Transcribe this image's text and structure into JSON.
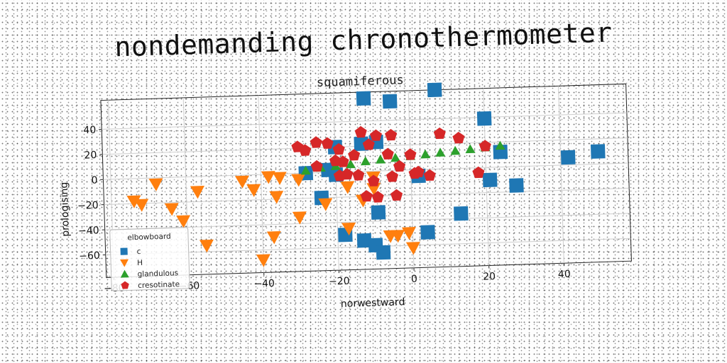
{
  "figure_title": "nondemanding chronothermometer",
  "chart_data": {
    "type": "scatter",
    "title": "squamiferous",
    "xlabel": "norwestward",
    "ylabel": "prologising",
    "xlim": [
      -82,
      58
    ],
    "ylim": [
      -78,
      63
    ],
    "xticks": [
      -80,
      -60,
      -40,
      -20,
      0,
      20,
      40
    ],
    "yticks": [
      -60,
      -40,
      -20,
      0,
      20,
      40
    ],
    "grid": true,
    "legend": {
      "title": "elbowboard",
      "placement": "lower-left"
    },
    "series": [
      {
        "name": "c",
        "marker": "square",
        "color": "#1f77b4",
        "points": [
          [
            -12,
            58
          ],
          [
            -5,
            55
          ],
          [
            7,
            63
          ],
          [
            20,
            39
          ],
          [
            -20,
            20
          ],
          [
            -13,
            22
          ],
          [
            -9,
            23
          ],
          [
            24,
            12
          ],
          [
            42,
            6
          ],
          [
            50,
            10
          ],
          [
            -22,
            2
          ],
          [
            -28,
            0
          ],
          [
            -20,
            -2
          ],
          [
            -24,
            -20
          ],
          [
            -18,
            -50
          ],
          [
            -13,
            -55
          ],
          [
            -10,
            -59
          ],
          [
            -8,
            -65
          ],
          [
            -9,
            -33
          ],
          [
            2,
            -5
          ],
          [
            4,
            -50
          ],
          [
            13,
            -36
          ],
          [
            21,
            -10
          ],
          [
            28,
            -15
          ]
        ]
      },
      {
        "name": "H",
        "marker": "triangle-down",
        "color": "#ff7f0e",
        "points": [
          [
            -74,
            -18
          ],
          [
            -72,
            -21
          ],
          [
            -68,
            -5
          ],
          [
            -64,
            -25
          ],
          [
            -61,
            -35
          ],
          [
            -57,
            -12
          ],
          [
            -55,
            -55
          ],
          [
            -45,
            -5
          ],
          [
            -42,
            -12
          ],
          [
            -38,
            -2
          ],
          [
            -35,
            -3
          ],
          [
            -30,
            -5
          ],
          [
            -36,
            -18
          ],
          [
            -30,
            -35
          ],
          [
            -37,
            -50
          ],
          [
            -40,
            -68
          ],
          [
            -23,
            -25
          ],
          [
            -17,
            -12
          ],
          [
            -13,
            -23
          ],
          [
            -10,
            -14
          ],
          [
            -17,
            -45
          ],
          [
            -10,
            -5
          ],
          [
            -6,
            -52
          ],
          [
            -4,
            -52
          ],
          [
            -1,
            -50
          ],
          [
            0,
            -62
          ]
        ]
      },
      {
        "name": "glandulous",
        "marker": "triangle-up",
        "color": "#2ca02c",
        "points": [
          [
            -28,
            2
          ],
          [
            -24,
            4
          ],
          [
            -20,
            5
          ],
          [
            -16,
            6
          ],
          [
            -12,
            8
          ],
          [
            -8,
            9
          ],
          [
            -4,
            10
          ],
          [
            0,
            11
          ],
          [
            4,
            12
          ],
          [
            8,
            13
          ],
          [
            12,
            14
          ],
          [
            16,
            15
          ],
          [
            20,
            16
          ],
          [
            24,
            17
          ]
        ]
      },
      {
        "name": "cresotinate",
        "marker": "pentagon",
        "color": "#d62728",
        "points": [
          [
            -30,
            21
          ],
          [
            -28,
            18
          ],
          [
            -25,
            24
          ],
          [
            -22,
            23
          ],
          [
            -19,
            18
          ],
          [
            -15,
            13
          ],
          [
            -13,
            31
          ],
          [
            -11,
            21
          ],
          [
            -9,
            28
          ],
          [
            -5,
            28
          ],
          [
            -6,
            13
          ],
          [
            -18,
            8
          ],
          [
            -14,
            -3
          ],
          [
            -17,
            -2
          ],
          [
            -19,
            -3
          ],
          [
            -10,
            -8
          ],
          [
            -5,
            -5
          ],
          [
            1,
            -3
          ],
          [
            -3,
            3
          ],
          [
            -25,
            5
          ],
          [
            -20,
            9
          ],
          [
            -12,
            -20
          ],
          [
            -9,
            -21
          ],
          [
            -4,
            -20
          ],
          [
            0,
            12
          ],
          [
            2,
            -2
          ],
          [
            5,
            -5
          ],
          [
            8,
            28
          ],
          [
            13,
            24
          ],
          [
            18,
            -4
          ],
          [
            20,
            17
          ]
        ]
      }
    ]
  }
}
